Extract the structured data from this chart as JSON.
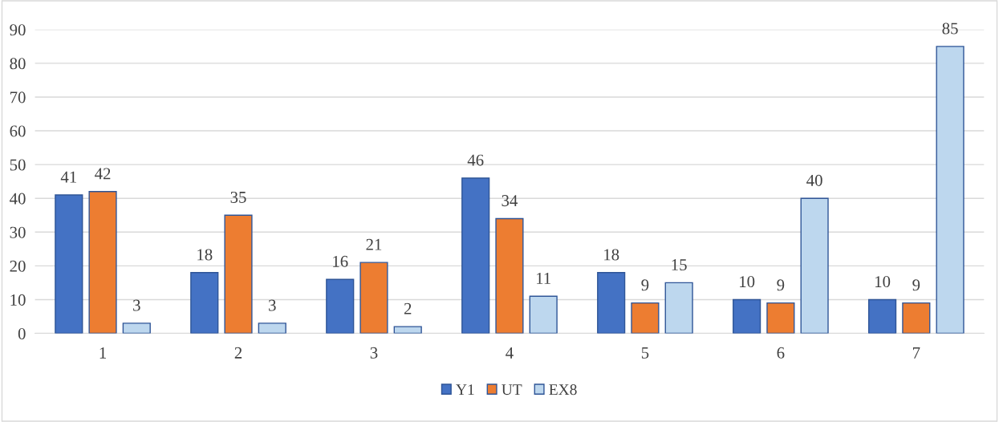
{
  "chart_data": {
    "type": "bar",
    "categories": [
      "1",
      "2",
      "3",
      "4",
      "5",
      "6",
      "7"
    ],
    "series": [
      {
        "name": "Y1",
        "color": "#4472c4",
        "values": [
          41,
          18,
          16,
          46,
          18,
          10,
          10
        ]
      },
      {
        "name": "UT",
        "color": "#ed7d31",
        "values": [
          42,
          35,
          21,
          34,
          9,
          9,
          9
        ]
      },
      {
        "name": "EX8",
        "color": "#bdd7ee",
        "values": [
          3,
          3,
          2,
          11,
          15,
          40,
          85
        ]
      }
    ],
    "ylim": [
      0,
      90
    ],
    "yticks": [
      0,
      10,
      20,
      30,
      40,
      50,
      60,
      70,
      80,
      90
    ],
    "grid": "y",
    "legend": "bottom",
    "data_labels": true
  }
}
